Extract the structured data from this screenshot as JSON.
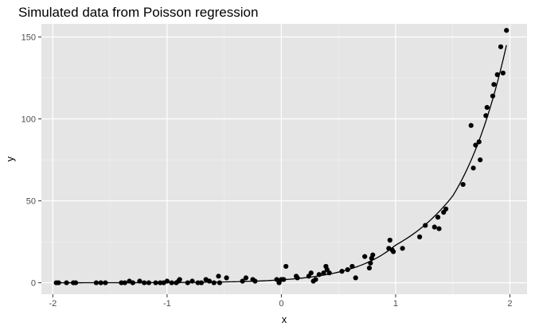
{
  "chart_data": {
    "type": "scatter",
    "title": "Simulated data from Poisson regression",
    "xlabel": "x",
    "ylabel": "y",
    "xlim": [
      -2.1,
      2.15
    ],
    "ylim": [
      -7,
      158
    ],
    "x_ticks": [
      -2,
      -1,
      0,
      1,
      2
    ],
    "x_tick_labels": [
      "-2",
      "-1",
      "0",
      "1",
      "2"
    ],
    "y_ticks": [
      0,
      50,
      100,
      150
    ],
    "y_tick_labels": [
      "0",
      "50",
      "100",
      "150"
    ],
    "grid": true,
    "legend": "none",
    "colors": {
      "panel": "#e5e5e5",
      "grid_major": "#ffffff",
      "point": "#000000",
      "line": "#000000",
      "axis_text": "#4d4d4d",
      "title": "#000000"
    },
    "points": [
      {
        "x": -1.97,
        "y": 0
      },
      {
        "x": -1.95,
        "y": 0
      },
      {
        "x": -1.88,
        "y": 0
      },
      {
        "x": -1.82,
        "y": 0
      },
      {
        "x": -1.8,
        "y": 0
      },
      {
        "x": -1.62,
        "y": 0
      },
      {
        "x": -1.58,
        "y": 0
      },
      {
        "x": -1.54,
        "y": 0
      },
      {
        "x": -1.4,
        "y": 0
      },
      {
        "x": -1.37,
        "y": 0
      },
      {
        "x": -1.33,
        "y": 1
      },
      {
        "x": -1.3,
        "y": 0
      },
      {
        "x": -1.24,
        "y": 1
      },
      {
        "x": -1.2,
        "y": 0
      },
      {
        "x": -1.16,
        "y": 0
      },
      {
        "x": -1.1,
        "y": 0
      },
      {
        "x": -1.06,
        "y": 0
      },
      {
        "x": -1.03,
        "y": 0
      },
      {
        "x": -1.0,
        "y": 1
      },
      {
        "x": -0.96,
        "y": 0
      },
      {
        "x": -0.92,
        "y": 0
      },
      {
        "x": -0.9,
        "y": 1
      },
      {
        "x": -0.89,
        "y": 2
      },
      {
        "x": -0.82,
        "y": 0
      },
      {
        "x": -0.78,
        "y": 1
      },
      {
        "x": -0.73,
        "y": 0
      },
      {
        "x": -0.7,
        "y": 0
      },
      {
        "x": -0.66,
        "y": 2
      },
      {
        "x": -0.63,
        "y": 1
      },
      {
        "x": -0.59,
        "y": 0
      },
      {
        "x": -0.55,
        "y": 4
      },
      {
        "x": -0.54,
        "y": 0
      },
      {
        "x": -0.48,
        "y": 3
      },
      {
        "x": -0.34,
        "y": 1
      },
      {
        "x": -0.31,
        "y": 3
      },
      {
        "x": -0.25,
        "y": 2
      },
      {
        "x": -0.23,
        "y": 1
      },
      {
        "x": -0.04,
        "y": 2
      },
      {
        "x": -0.02,
        "y": 0
      },
      {
        "x": 0.0,
        "y": 2
      },
      {
        "x": 0.02,
        "y": 2
      },
      {
        "x": 0.04,
        "y": 10
      },
      {
        "x": 0.13,
        "y": 4
      },
      {
        "x": 0.14,
        "y": 3
      },
      {
        "x": 0.24,
        "y": 4
      },
      {
        "x": 0.26,
        "y": 6
      },
      {
        "x": 0.28,
        "y": 1
      },
      {
        "x": 0.3,
        "y": 2
      },
      {
        "x": 0.33,
        "y": 5
      },
      {
        "x": 0.37,
        "y": 6
      },
      {
        "x": 0.39,
        "y": 10
      },
      {
        "x": 0.4,
        "y": 8
      },
      {
        "x": 0.42,
        "y": 6
      },
      {
        "x": 0.53,
        "y": 7
      },
      {
        "x": 0.58,
        "y": 8
      },
      {
        "x": 0.62,
        "y": 10
      },
      {
        "x": 0.65,
        "y": 3
      },
      {
        "x": 0.73,
        "y": 16
      },
      {
        "x": 0.77,
        "y": 9
      },
      {
        "x": 0.78,
        "y": 12
      },
      {
        "x": 0.79,
        "y": 15
      },
      {
        "x": 0.8,
        "y": 17
      },
      {
        "x": 0.94,
        "y": 21
      },
      {
        "x": 0.95,
        "y": 26
      },
      {
        "x": 0.97,
        "y": 20
      },
      {
        "x": 0.98,
        "y": 19
      },
      {
        "x": 1.06,
        "y": 21
      },
      {
        "x": 1.21,
        "y": 28
      },
      {
        "x": 1.26,
        "y": 35
      },
      {
        "x": 1.34,
        "y": 34
      },
      {
        "x": 1.37,
        "y": 40
      },
      {
        "x": 1.38,
        "y": 33
      },
      {
        "x": 1.42,
        "y": 43
      },
      {
        "x": 1.44,
        "y": 45
      },
      {
        "x": 1.59,
        "y": 60
      },
      {
        "x": 1.66,
        "y": 96
      },
      {
        "x": 1.68,
        "y": 70
      },
      {
        "x": 1.7,
        "y": 84
      },
      {
        "x": 1.73,
        "y": 86
      },
      {
        "x": 1.74,
        "y": 75
      },
      {
        "x": 1.79,
        "y": 102
      },
      {
        "x": 1.8,
        "y": 107
      },
      {
        "x": 1.85,
        "y": 114
      },
      {
        "x": 1.86,
        "y": 121
      },
      {
        "x": 1.89,
        "y": 127
      },
      {
        "x": 1.92,
        "y": 144
      },
      {
        "x": 1.94,
        "y": 128
      },
      {
        "x": 1.97,
        "y": 154
      }
    ],
    "curve": {
      "type": "exponential",
      "x_range": [
        -1.97,
        1.97
      ],
      "samples": [
        {
          "x": -1.97,
          "y": 0.01
        },
        {
          "x": -1.5,
          "y": 0.04
        },
        {
          "x": -1.0,
          "y": 0.13
        },
        {
          "x": -0.5,
          "y": 0.5
        },
        {
          "x": 0.0,
          "y": 1.8
        },
        {
          "x": 0.5,
          "y": 6.5
        },
        {
          "x": 1.0,
          "y": 23.0
        },
        {
          "x": 1.5,
          "y": 53.0
        },
        {
          "x": 1.97,
          "y": 145.0
        }
      ]
    }
  }
}
